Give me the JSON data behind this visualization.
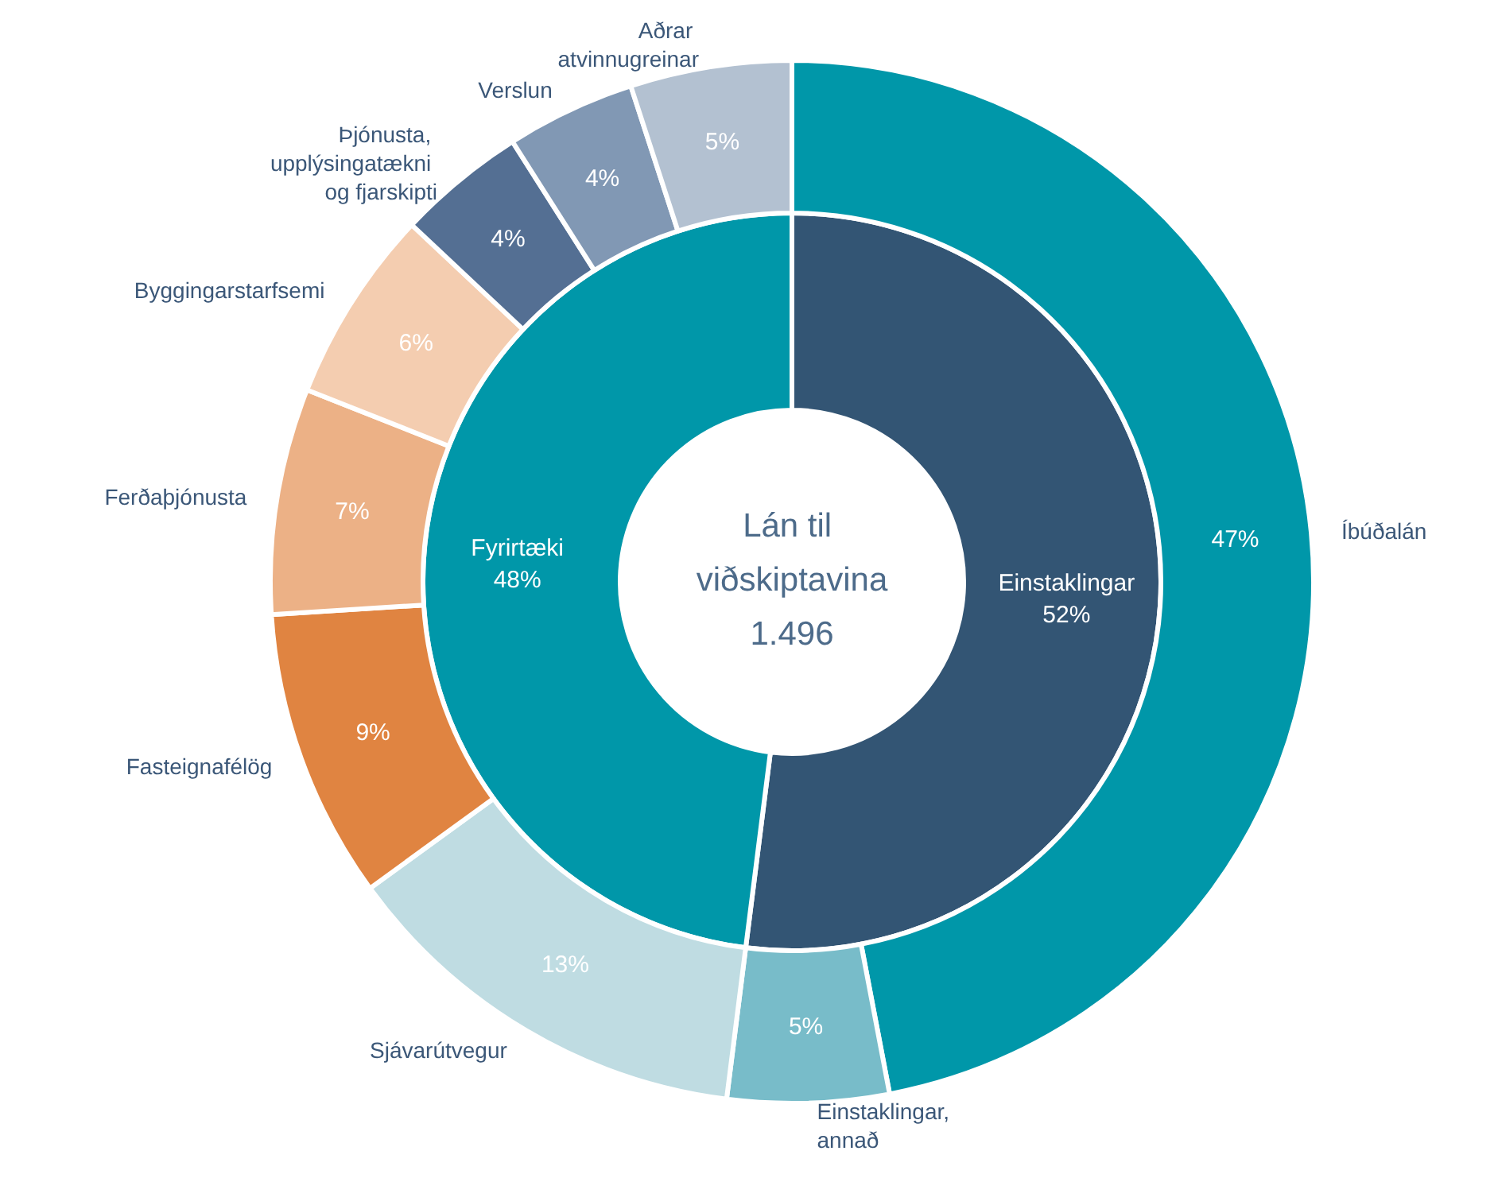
{
  "chart_data": [
    {
      "type": "donut",
      "title": "Lán til viðskiptavina",
      "subtitle": "1.496",
      "categories": [
        "Einstaklingar",
        "Fyrirtæki"
      ],
      "values": [
        52,
        48
      ],
      "colors": [
        "#335574",
        "#0097a9"
      ],
      "value_labels": [
        "52%",
        "48%"
      ]
    },
    {
      "type": "donut",
      "categories": [
        "Íbúðalán",
        "Einstaklingar, annað",
        "Sjávarútvegur",
        "Fasteignafélög",
        "Ferðaþjónusta",
        "Byggingarstarfsemi",
        "Þjónusta, upplýsingatækni og fjarskipti",
        "Verslun",
        "Aðrar atvinnugreinar"
      ],
      "values": [
        47,
        5,
        13,
        9,
        7,
        6,
        4,
        4,
        5
      ],
      "colors": [
        "#0097a9",
        "#78bcc9",
        "#bfdce2",
        "#e08441",
        "#ecb186",
        "#f4cdb0",
        "#546f93",
        "#8198b4",
        "#b3c1d1"
      ],
      "value_labels": [
        "47%",
        "5%",
        "13%",
        "9%",
        "7%",
        "6%",
        "4%",
        "4%",
        "5%"
      ]
    }
  ]
}
